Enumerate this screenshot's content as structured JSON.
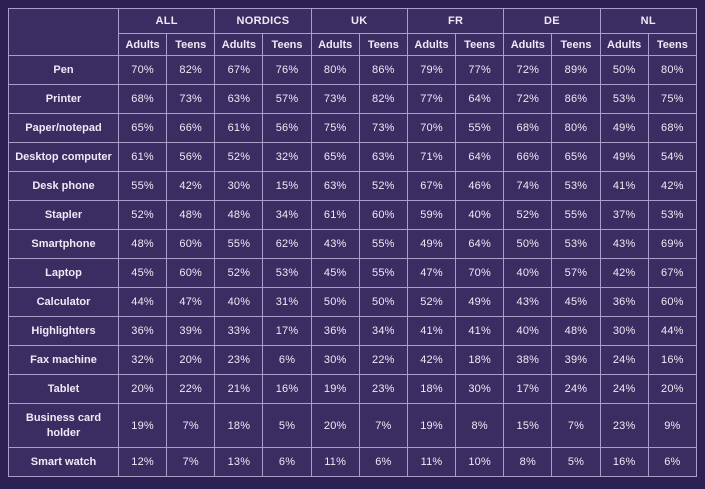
{
  "table": {
    "corner_label": "",
    "groups": [
      {
        "label": "ALL"
      },
      {
        "label": "NORDICS"
      },
      {
        "label": "UK"
      },
      {
        "label": "FR"
      },
      {
        "label": "DE"
      },
      {
        "label": "NL"
      }
    ],
    "sub_columns": [
      "Adults",
      "Teens"
    ],
    "rows": [
      {
        "label": "Pen",
        "values": [
          "70%",
          "82%",
          "67%",
          "76%",
          "80%",
          "86%",
          "79%",
          "77%",
          "72%",
          "89%",
          "50%",
          "80%"
        ]
      },
      {
        "label": "Printer",
        "values": [
          "68%",
          "73%",
          "63%",
          "57%",
          "73%",
          "82%",
          "77%",
          "64%",
          "72%",
          "86%",
          "53%",
          "75%"
        ]
      },
      {
        "label": "Paper/notepad",
        "values": [
          "65%",
          "66%",
          "61%",
          "56%",
          "75%",
          "73%",
          "70%",
          "55%",
          "68%",
          "80%",
          "49%",
          "68%"
        ]
      },
      {
        "label": "Desktop computer",
        "values": [
          "61%",
          "56%",
          "52%",
          "32%",
          "65%",
          "63%",
          "71%",
          "64%",
          "66%",
          "65%",
          "49%",
          "54%"
        ]
      },
      {
        "label": "Desk phone",
        "values": [
          "55%",
          "42%",
          "30%",
          "15%",
          "63%",
          "52%",
          "67%",
          "46%",
          "74%",
          "53%",
          "41%",
          "42%"
        ]
      },
      {
        "label": "Stapler",
        "values": [
          "52%",
          "48%",
          "48%",
          "34%",
          "61%",
          "60%",
          "59%",
          "40%",
          "52%",
          "55%",
          "37%",
          "53%"
        ]
      },
      {
        "label": "Smartphone",
        "values": [
          "48%",
          "60%",
          "55%",
          "62%",
          "43%",
          "55%",
          "49%",
          "64%",
          "50%",
          "53%",
          "43%",
          "69%"
        ]
      },
      {
        "label": "Laptop",
        "values": [
          "45%",
          "60%",
          "52%",
          "53%",
          "45%",
          "55%",
          "47%",
          "70%",
          "40%",
          "57%",
          "42%",
          "67%"
        ]
      },
      {
        "label": "Calculator",
        "values": [
          "44%",
          "47%",
          "40%",
          "31%",
          "50%",
          "50%",
          "52%",
          "49%",
          "43%",
          "45%",
          "36%",
          "60%"
        ]
      },
      {
        "label": "Highlighters",
        "values": [
          "36%",
          "39%",
          "33%",
          "17%",
          "36%",
          "34%",
          "41%",
          "41%",
          "40%",
          "48%",
          "30%",
          "44%"
        ]
      },
      {
        "label": "Fax machine",
        "values": [
          "32%",
          "20%",
          "23%",
          "6%",
          "30%",
          "22%",
          "42%",
          "18%",
          "38%",
          "39%",
          "24%",
          "16%"
        ]
      },
      {
        "label": "Tablet",
        "values": [
          "20%",
          "22%",
          "21%",
          "16%",
          "19%",
          "23%",
          "18%",
          "30%",
          "17%",
          "24%",
          "24%",
          "20%"
        ]
      },
      {
        "label": "Business card holder",
        "values": [
          "19%",
          "7%",
          "18%",
          "5%",
          "20%",
          "7%",
          "19%",
          "8%",
          "15%",
          "7%",
          "23%",
          "9%"
        ]
      },
      {
        "label": "Smart watch",
        "values": [
          "12%",
          "7%",
          "13%",
          "6%",
          "11%",
          "6%",
          "11%",
          "10%",
          "8%",
          "5%",
          "16%",
          "6%"
        ]
      }
    ]
  },
  "colors": {
    "page_background": "#2d2154",
    "cell_background": "#3a2d61",
    "grid_line": "#ab9ec9",
    "text": "#efeaf6"
  },
  "chart_data": {
    "type": "table",
    "column_groups": [
      "ALL",
      "NORDICS",
      "UK",
      "FR",
      "DE",
      "NL"
    ],
    "sub_columns_per_group": [
      "Adults",
      "Teens"
    ],
    "row_labels": [
      "Pen",
      "Printer",
      "Paper/notepad",
      "Desktop computer",
      "Desk phone",
      "Stapler",
      "Smartphone",
      "Laptop",
      "Calculator",
      "Highlighters",
      "Fax machine",
      "Tablet",
      "Business card holder",
      "Smart watch"
    ],
    "values_percent": [
      [
        70,
        82,
        67,
        76,
        80,
        86,
        79,
        77,
        72,
        89,
        50,
        80
      ],
      [
        68,
        73,
        63,
        57,
        73,
        82,
        77,
        64,
        72,
        86,
        53,
        75
      ],
      [
        65,
        66,
        61,
        56,
        75,
        73,
        70,
        55,
        68,
        80,
        49,
        68
      ],
      [
        61,
        56,
        52,
        32,
        65,
        63,
        71,
        64,
        66,
        65,
        49,
        54
      ],
      [
        55,
        42,
        30,
        15,
        63,
        52,
        67,
        46,
        74,
        53,
        41,
        42
      ],
      [
        52,
        48,
        48,
        34,
        61,
        60,
        59,
        40,
        52,
        55,
        37,
        53
      ],
      [
        48,
        60,
        55,
        62,
        43,
        55,
        49,
        64,
        50,
        53,
        43,
        69
      ],
      [
        45,
        60,
        52,
        53,
        45,
        55,
        47,
        70,
        40,
        57,
        42,
        67
      ],
      [
        44,
        47,
        40,
        31,
        50,
        50,
        52,
        49,
        43,
        45,
        36,
        60
      ],
      [
        36,
        39,
        33,
        17,
        36,
        34,
        41,
        41,
        40,
        48,
        30,
        44
      ],
      [
        32,
        20,
        23,
        6,
        30,
        22,
        42,
        18,
        38,
        39,
        24,
        16
      ],
      [
        20,
        22,
        21,
        16,
        19,
        23,
        18,
        30,
        17,
        24,
        24,
        20
      ],
      [
        19,
        7,
        18,
        5,
        20,
        7,
        19,
        8,
        15,
        7,
        23,
        9
      ],
      [
        12,
        7,
        13,
        6,
        11,
        6,
        11,
        10,
        8,
        5,
        16,
        6
      ]
    ]
  }
}
